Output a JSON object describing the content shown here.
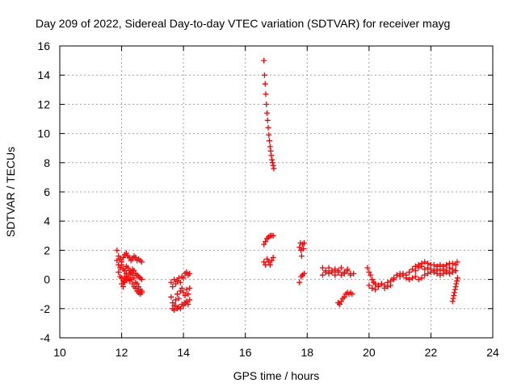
{
  "chart_data": {
    "type": "scatter",
    "title": "Day 209 of 2022, Sidereal Day-to-day VTEC variation (SDTVAR) for receiver mayg",
    "xlabel": "GPS time / hours",
    "ylabel": "SDTVAR / TECUs",
    "xlim": [
      10,
      24
    ],
    "ylim": [
      -4,
      16
    ],
    "x_ticks": [
      "10",
      "12",
      "14",
      "16",
      "18",
      "20",
      "22",
      "24"
    ],
    "y_ticks": [
      "-4",
      "-2",
      "0",
      "2",
      "4",
      "6",
      "8",
      "10",
      "12",
      "14",
      "16"
    ],
    "grid": true,
    "marker": "+",
    "series": [
      {
        "name": "SDTVAR",
        "color": "#ff0000",
        "x": [
          11.85,
          11.9,
          11.95,
          12.0,
          12.05,
          12.1,
          12.15,
          12.2,
          12.25,
          12.3,
          12.35,
          12.4,
          12.45,
          12.5,
          12.55,
          12.6,
          12.65,
          11.85,
          11.9,
          11.95,
          12.0,
          12.05,
          12.1,
          12.15,
          12.2,
          12.25,
          12.3,
          12.35,
          12.4,
          12.45,
          12.5,
          12.55,
          12.6,
          12.65,
          11.9,
          11.95,
          12.0,
          12.05,
          12.1,
          12.15,
          12.2,
          12.25,
          12.3,
          12.35,
          12.4,
          12.45,
          12.5,
          12.55,
          12.6,
          12.65,
          12.0,
          12.05,
          12.1,
          12.15,
          12.2,
          12.25,
          12.3,
          12.35,
          12.4,
          12.45,
          12.5,
          12.55,
          12.6,
          12.65,
          13.6,
          13.65,
          13.7,
          13.75,
          13.8,
          13.85,
          13.9,
          13.95,
          14.0,
          14.05,
          14.1,
          14.15,
          14.2,
          13.6,
          13.65,
          13.7,
          13.75,
          13.8,
          13.85,
          13.9,
          13.95,
          14.0,
          14.05,
          14.1,
          14.15,
          14.2,
          13.65,
          13.7,
          13.75,
          13.8,
          13.85,
          13.9,
          13.95,
          14.0,
          14.05,
          14.1,
          14.15,
          14.2,
          16.6,
          16.62,
          16.64,
          16.66,
          16.68,
          16.7,
          16.72,
          16.74,
          16.76,
          16.78,
          16.8,
          16.82,
          16.84,
          16.86,
          16.88,
          16.9,
          16.92,
          16.6,
          16.65,
          16.7,
          16.75,
          16.8,
          16.85,
          16.9,
          16.6,
          16.65,
          16.7,
          16.75,
          16.8,
          16.85,
          16.9,
          17.75,
          17.78,
          17.8,
          17.82,
          17.85,
          17.88,
          17.9,
          17.75,
          17.8,
          17.85,
          17.9,
          18.5,
          18.6,
          18.7,
          18.8,
          18.9,
          19.0,
          19.1,
          19.2,
          19.3,
          19.4,
          19.5,
          18.5,
          18.6,
          18.7,
          18.8,
          18.9,
          19.0,
          19.1,
          19.2,
          19.3,
          19.4,
          19.0,
          19.05,
          19.1,
          19.15,
          19.2,
          19.25,
          19.3,
          19.35,
          19.4,
          19.45,
          19.95,
          20.0,
          20.05,
          20.1,
          20.15,
          20.2,
          20.3,
          20.4,
          20.5,
          20.6,
          20.7,
          20.8,
          20.9,
          21.0,
          21.1,
          21.2,
          21.3,
          21.4,
          21.5,
          21.6,
          21.7,
          21.8,
          21.9,
          22.0,
          22.1,
          22.2,
          22.3,
          22.4,
          22.5,
          22.6,
          22.7,
          22.8,
          22.85,
          20.0,
          20.1,
          20.2,
          20.3,
          20.4,
          20.5,
          20.6,
          20.7,
          20.8,
          20.9,
          21.0,
          21.1,
          21.2,
          21.3,
          21.4,
          21.5,
          21.6,
          21.7,
          21.8,
          21.9,
          22.0,
          22.1,
          22.2,
          22.3,
          22.4,
          22.5,
          22.6,
          22.7,
          22.8,
          21.5,
          21.6,
          21.7,
          21.8,
          21.9,
          22.0,
          22.1,
          22.2,
          22.3,
          22.4,
          22.5,
          22.6,
          22.7,
          22.8,
          22.7,
          22.72,
          22.74,
          22.76,
          22.78,
          22.8,
          22.82,
          22.84,
          22.86
        ],
        "y": [
          2.0,
          1.6,
          1.4,
          1.2,
          1.5,
          1.7,
          1.8,
          1.6,
          1.5,
          1.3,
          1.4,
          1.6,
          1.5,
          1.3,
          1.4,
          1.3,
          1.2,
          1.3,
          1.0,
          0.8,
          1.0,
          0.7,
          0.6,
          0.9,
          0.8,
          0.6,
          0.5,
          0.7,
          0.6,
          0.4,
          0.3,
          0.2,
          0.1,
          0.0,
          0.5,
          0.2,
          0.1,
          -0.1,
          0.2,
          0.4,
          0.1,
          -0.1,
          0.0,
          0.3,
          0.1,
          -0.2,
          -0.3,
          -0.5,
          -0.7,
          -0.9,
          -0.3,
          -0.5,
          -0.2,
          0.0,
          0.2,
          0.4,
          0.0,
          -0.3,
          -0.5,
          -0.6,
          -0.8,
          -0.9,
          -1.0,
          -0.8,
          -0.2,
          -0.5,
          0.0,
          -0.3,
          -0.1,
          0.1,
          -0.2,
          0.2,
          0.1,
          0.4,
          0.5,
          0.3,
          0.4,
          -1.2,
          -1.6,
          -1.8,
          -1.4,
          -1.0,
          -1.3,
          -0.8,
          -0.6,
          -0.9,
          -1.1,
          -0.7,
          -1.0,
          -0.6,
          -2.0,
          -2.1,
          -1.8,
          -2.0,
          -1.9,
          -2.0,
          -1.7,
          -1.8,
          -1.6,
          -1.5,
          -1.7,
          -1.4,
          15.0,
          14.0,
          13.4,
          12.7,
          12.0,
          11.4,
          10.9,
          10.4,
          9.9,
          9.5,
          9.1,
          8.8,
          8.5,
          8.2,
          8.0,
          7.8,
          7.6,
          2.4,
          2.6,
          2.8,
          2.9,
          3.0,
          3.0,
          3.0,
          1.2,
          1.0,
          1.4,
          1.2,
          1.0,
          1.3,
          1.5,
          2.2,
          2.5,
          2.0,
          1.6,
          2.4,
          2.1,
          2.5,
          -0.2,
          0.2,
          0.3,
          0.4,
          0.8,
          0.6,
          0.8,
          0.5,
          0.7,
          0.6,
          0.8,
          0.5,
          0.7,
          0.4,
          0.4,
          0.3,
          0.5,
          0.4,
          0.6,
          0.3,
          0.5,
          0.3,
          0.4,
          0.6,
          0.3,
          -1.6,
          -1.7,
          -1.5,
          -1.3,
          -1.2,
          -1.0,
          -0.9,
          -1.0,
          -0.9,
          -1.0,
          0.8,
          0.5,
          0.3,
          0.0,
          -0.2,
          -0.3,
          -0.4,
          -0.3,
          -0.4,
          -0.2,
          -0.1,
          0.1,
          0.3,
          0.4,
          0.4,
          0.3,
          0.5,
          0.7,
          0.9,
          1.0,
          1.1,
          1.2,
          1.1,
          1.0,
          1.0,
          0.9,
          1.0,
          0.9,
          1.0,
          1.1,
          1.1,
          1.0,
          1.2,
          -0.4,
          -0.6,
          -0.7,
          -0.5,
          -0.3,
          -0.6,
          -0.5,
          -0.4,
          0.0,
          0.3,
          0.2,
          0.3,
          0.1,
          0.0,
          0.1,
          0.2,
          0.0,
          0.1,
          0.3,
          0.4,
          0.5,
          0.5,
          0.4,
          0.3,
          0.4,
          0.5,
          0.4,
          0.5,
          0.6,
          0.6,
          0.8,
          0.9,
          0.7,
          0.8,
          0.7,
          0.6,
          0.7,
          0.6,
          0.7,
          0.6,
          0.8,
          0.7,
          0.6,
          -1.5,
          -1.3,
          -1.1,
          -0.9,
          -0.7,
          -0.5,
          -0.3,
          -0.1,
          0.1
        ]
      }
    ]
  }
}
